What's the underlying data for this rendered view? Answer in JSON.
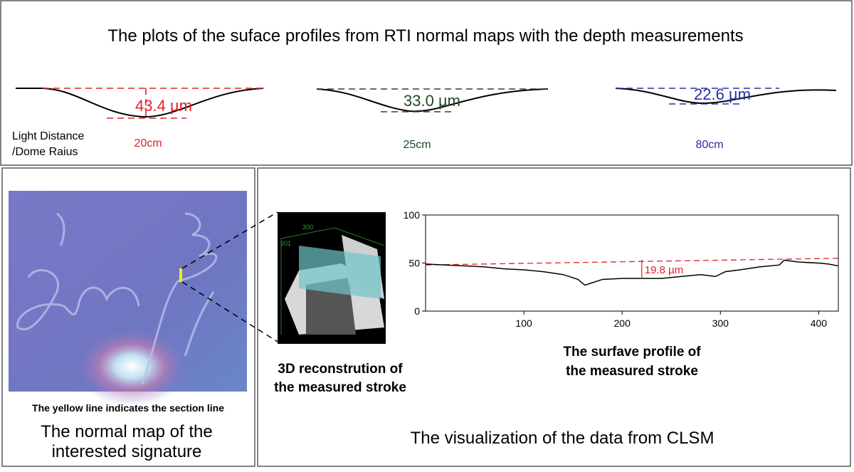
{
  "top": {
    "title": "The plots of the suface profiles from RTI normal maps with the depth measurements",
    "row_label": [
      "Light Distance",
      "/Dome Raius"
    ],
    "profiles": [
      {
        "depth": "43.4 µm",
        "distance": "20cm",
        "color": "#e0202a"
      },
      {
        "depth": "33.0 µm",
        "distance": "25cm",
        "color": "#1e4a22"
      },
      {
        "depth": "22.6 µm",
        "distance": "80cm",
        "color": "#2a2fa8"
      }
    ]
  },
  "normal_map": {
    "caption": "The yellow line indicates the section line",
    "title": [
      "The normal map of the",
      "interested signature"
    ]
  },
  "reconstruction": {
    "labels": [
      "300",
      "601"
    ],
    "caption": [
      "3D reconstrution of",
      "the measured stroke"
    ]
  },
  "clsm": {
    "title": "The visualization of the data from CLSM"
  },
  "chart_data": {
    "type": "line",
    "caption": [
      "The surfave profile of",
      "the measured stroke"
    ],
    "x": [
      0,
      20,
      40,
      60,
      80,
      100,
      120,
      140,
      155,
      162,
      168,
      180,
      200,
      220,
      240,
      260,
      280,
      295,
      305,
      320,
      340,
      360,
      365,
      380,
      400,
      410,
      420
    ],
    "series": [
      {
        "color": "#000000",
        "values": [
          49,
          48,
          47,
          46,
          44,
          43,
          41,
          38,
          33,
          27,
          29,
          33,
          34,
          34,
          34,
          36,
          38,
          36,
          41,
          43,
          46,
          48,
          53,
          51,
          50,
          49,
          47
        ]
      }
    ],
    "reference_line": {
      "x": [
        0,
        420
      ],
      "values": [
        48,
        55
      ],
      "color": "#e0202a"
    },
    "annotation": {
      "text": "19.8 µm",
      "x": 220,
      "from": 53.6,
      "to": 33.8,
      "color": "#e0202a"
    },
    "xlim": [
      0,
      420
    ],
    "ylim": [
      0,
      100
    ],
    "xticks": [
      100,
      200,
      300,
      400
    ],
    "yticks": [
      0,
      50,
      100
    ]
  }
}
